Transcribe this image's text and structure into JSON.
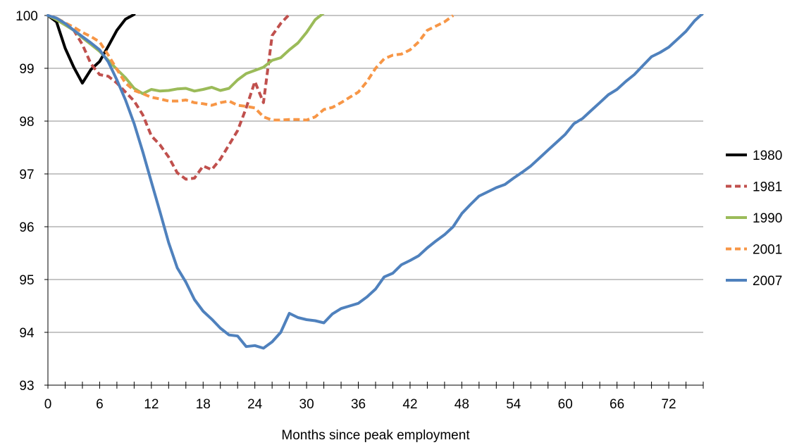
{
  "chart_data": {
    "type": "line",
    "title": "",
    "xlabel": "Months since peak employment",
    "ylabel": "",
    "xlim": [
      0,
      76
    ],
    "ylim": [
      93,
      100
    ],
    "x_ticks": [
      0,
      6,
      12,
      18,
      24,
      30,
      36,
      42,
      48,
      54,
      60,
      66,
      72
    ],
    "y_ticks": [
      93,
      94,
      95,
      96,
      97,
      98,
      99,
      100
    ],
    "grid": "horizontal",
    "legend": "right",
    "series": [
      {
        "name": "1980",
        "color": "#000000",
        "dash": "solid",
        "x": [
          0,
          1,
          2,
          3,
          4,
          5,
          6,
          7,
          8,
          9,
          10
        ],
        "y": [
          100,
          99.88,
          99.38,
          99.02,
          98.72,
          98.98,
          99.13,
          99.42,
          99.72,
          99.93,
          100.02
        ]
      },
      {
        "name": "1981",
        "color": "#c0504d",
        "dash": "dashed",
        "x": [
          0,
          1,
          2,
          3,
          4,
          5,
          6,
          7,
          8,
          9,
          10,
          11,
          12,
          13,
          14,
          15,
          16,
          17,
          18,
          19,
          20,
          21,
          22,
          23,
          24,
          25,
          26,
          27,
          28
        ],
        "y": [
          100,
          99.95,
          99.85,
          99.72,
          99.45,
          99.08,
          98.88,
          98.85,
          98.72,
          98.55,
          98.38,
          98.12,
          97.72,
          97.55,
          97.32,
          97.02,
          96.9,
          96.92,
          97.15,
          97.08,
          97.28,
          97.55,
          97.82,
          98.25,
          98.75,
          98.35,
          99.62,
          99.85,
          100.02
        ]
      },
      {
        "name": "1990",
        "color": "#9bbb59",
        "dash": "solid",
        "x": [
          0,
          1,
          2,
          3,
          4,
          5,
          6,
          7,
          8,
          9,
          10,
          11,
          12,
          13,
          14,
          15,
          16,
          17,
          18,
          19,
          20,
          21,
          22,
          23,
          24,
          25,
          26,
          27,
          28,
          29,
          30,
          31,
          32
        ],
        "y": [
          100,
          99.92,
          99.82,
          99.72,
          99.58,
          99.45,
          99.32,
          99.15,
          98.98,
          98.82,
          98.62,
          98.52,
          98.6,
          98.57,
          98.58,
          98.61,
          98.62,
          98.57,
          98.6,
          98.64,
          98.58,
          98.62,
          98.78,
          98.9,
          98.96,
          99.02,
          99.15,
          99.2,
          99.35,
          99.48,
          99.68,
          99.92,
          100.05
        ]
      },
      {
        "name": "2001",
        "color": "#f79646",
        "dash": "dashed",
        "x": [
          0,
          1,
          2,
          3,
          4,
          5,
          6,
          7,
          8,
          9,
          10,
          11,
          12,
          13,
          14,
          15,
          16,
          17,
          18,
          19,
          20,
          21,
          22,
          23,
          24,
          25,
          26,
          27,
          28,
          29,
          30,
          31,
          32,
          33,
          34,
          35,
          36,
          37,
          38,
          39,
          40,
          41,
          42,
          43,
          44,
          45,
          46,
          47
        ],
        "y": [
          100,
          99.95,
          99.86,
          99.78,
          99.68,
          99.6,
          99.5,
          99.25,
          98.98,
          98.72,
          98.58,
          98.52,
          98.45,
          98.42,
          98.38,
          98.38,
          98.4,
          98.35,
          98.33,
          98.3,
          98.35,
          98.38,
          98.3,
          98.28,
          98.25,
          98.08,
          98.02,
          98.02,
          98.03,
          98.03,
          98.02,
          98.08,
          98.22,
          98.26,
          98.35,
          98.45,
          98.55,
          98.75,
          99.0,
          99.18,
          99.25,
          99.27,
          99.35,
          99.5,
          99.72,
          99.8,
          99.88,
          100.0
        ]
      },
      {
        "name": "2007",
        "color": "#4f81bd",
        "dash": "solid",
        "x": [
          0,
          1,
          2,
          3,
          4,
          5,
          6,
          7,
          8,
          9,
          10,
          11,
          12,
          13,
          14,
          15,
          16,
          17,
          18,
          19,
          20,
          21,
          22,
          23,
          24,
          25,
          26,
          27,
          28,
          29,
          30,
          31,
          32,
          33,
          34,
          35,
          36,
          37,
          38,
          39,
          40,
          41,
          42,
          43,
          44,
          45,
          46,
          47,
          48,
          49,
          50,
          51,
          52,
          53,
          54,
          55,
          56,
          57,
          58,
          59,
          60,
          61,
          62,
          63,
          64,
          65,
          66,
          67,
          68,
          69,
          70,
          71,
          72,
          73,
          74,
          75,
          76
        ],
        "y": [
          100,
          99.95,
          99.85,
          99.72,
          99.6,
          99.48,
          99.35,
          99.12,
          98.78,
          98.4,
          97.95,
          97.42,
          96.85,
          96.28,
          95.7,
          95.22,
          94.95,
          94.62,
          94.4,
          94.25,
          94.08,
          93.95,
          93.93,
          93.73,
          93.75,
          93.7,
          93.82,
          94.0,
          94.36,
          94.28,
          94.24,
          94.22,
          94.18,
          94.35,
          94.45,
          94.5,
          94.55,
          94.67,
          94.82,
          95.05,
          95.12,
          95.28,
          95.36,
          95.45,
          95.6,
          95.73,
          95.85,
          96.0,
          96.25,
          96.42,
          96.58,
          96.66,
          96.74,
          96.8,
          96.92,
          97.03,
          97.15,
          97.3,
          97.45,
          97.6,
          97.75,
          97.95,
          98.05,
          98.2,
          98.35,
          98.5,
          98.6,
          98.75,
          98.88,
          99.05,
          99.22,
          99.3,
          99.4,
          99.55,
          99.7,
          99.9,
          100.05
        ]
      }
    ]
  }
}
